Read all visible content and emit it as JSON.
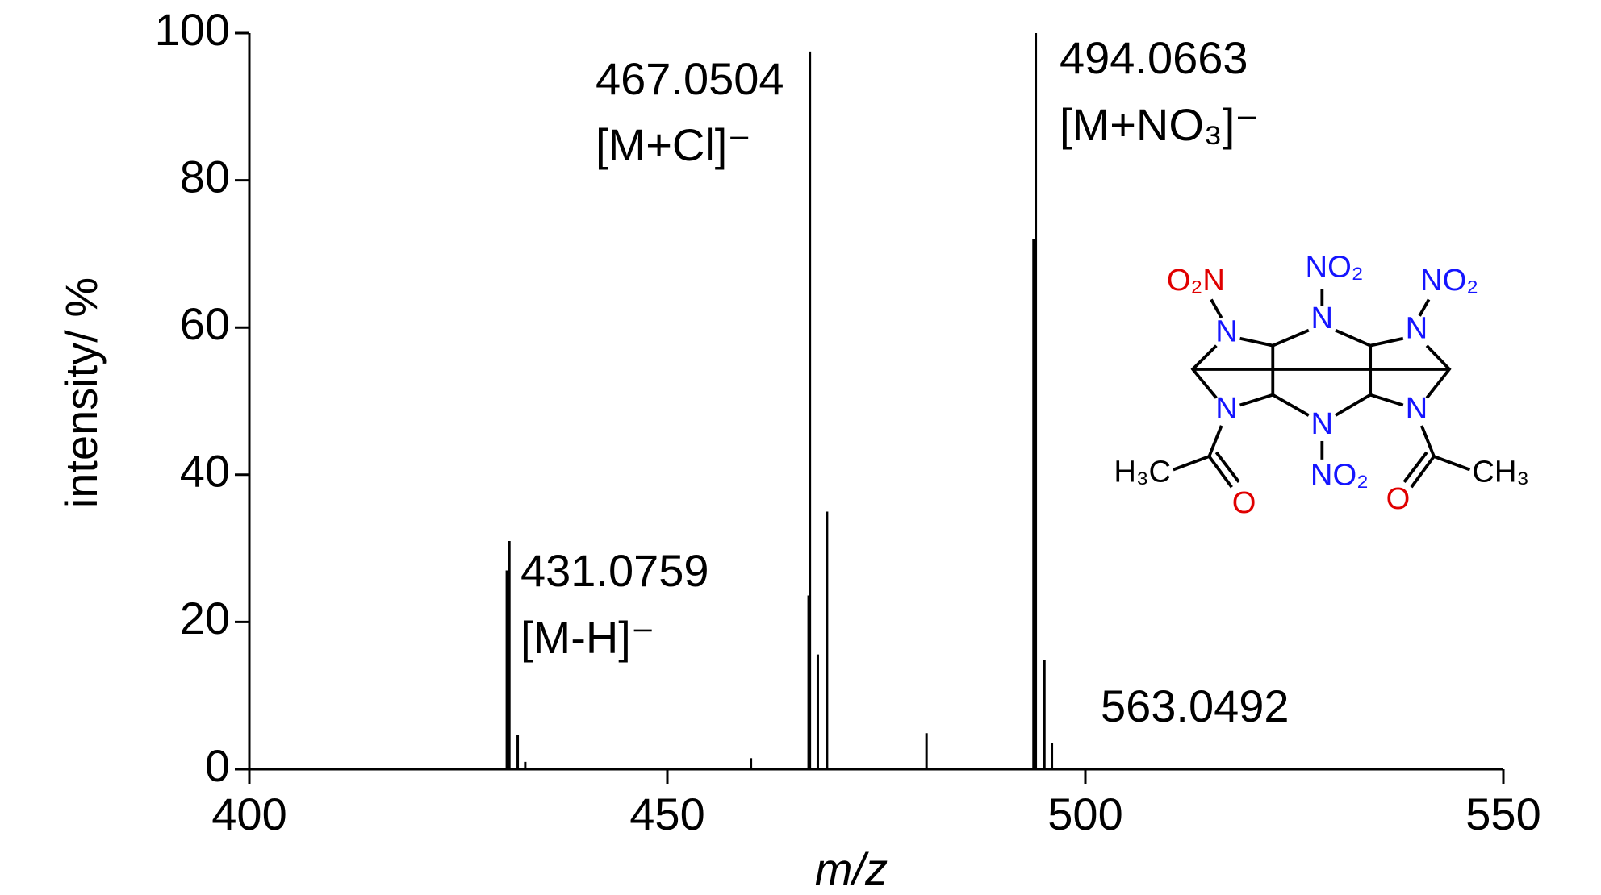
{
  "chart_data": {
    "type": "stem",
    "xlabel": "m/z",
    "ylabel": "intensity/ %",
    "xlim": [
      400,
      550
    ],
    "xticks": [
      400,
      450,
      500,
      550
    ],
    "ylim": [
      0,
      100
    ],
    "yticks": [
      0,
      20,
      40,
      60,
      80,
      100
    ],
    "series": [
      {
        "color": "#000000",
        "x": [
          430.8,
          431.1,
          432.1,
          433,
          460,
          466.9,
          467.05,
          468,
          469.1,
          481,
          493.8,
          494.07,
          495.1,
          496
        ],
        "values": [
          27,
          31,
          4.6,
          1,
          1.5,
          23.6,
          97.5,
          15.6,
          35,
          4.9,
          72,
          100,
          14.8,
          3.6
        ]
      }
    ],
    "annotations": [
      "467.0504",
      "[M+Cl]⁻",
      "494.0663",
      "[M+NO₃]⁻",
      "431.0759",
      "[M-H]⁻",
      "563.0492"
    ]
  },
  "structure": {
    "labels": [
      "O₂N",
      "NO₂",
      "NO₂",
      "N",
      "N",
      "N",
      "N",
      "N",
      "N",
      "H₃C",
      "O",
      "NO₂",
      "O",
      "CH₃"
    ]
  }
}
